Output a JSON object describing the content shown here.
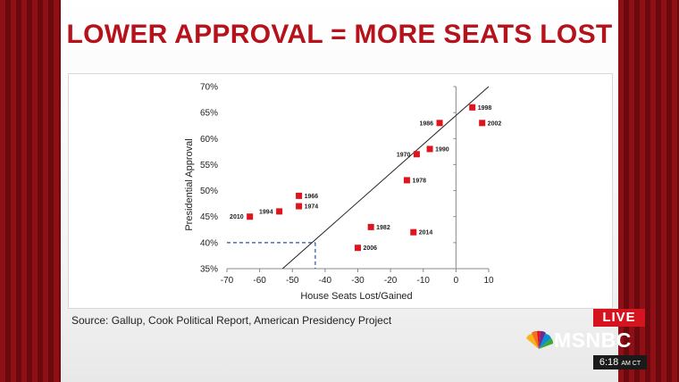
{
  "headline": "LOWER APPROVAL = MORE SEATS LOST",
  "source": "Source: Gallup, Cook Political Report, American Presidency Project",
  "live_label": "LIVE",
  "network": "MSNBC",
  "clock": {
    "time": "6:18",
    "tz": "AM CT"
  },
  "colors": {
    "accent": "#b5121b",
    "marker": "#e0141e",
    "background": "#7a0d12"
  },
  "chart_data": {
    "type": "scatter",
    "title": "",
    "xlabel": "House Seats Lost/Gained",
    "ylabel": "Presidential Approval",
    "xlim": [
      -70,
      10
    ],
    "ylim": [
      35,
      70
    ],
    "xticks": [
      -70,
      -60,
      -50,
      -40,
      -30,
      -20,
      -10,
      0,
      10
    ],
    "yticks": [
      35,
      40,
      45,
      50,
      55,
      60,
      65,
      70
    ],
    "xtick_labels": [
      "-70",
      "-60",
      "-50",
      "-40",
      "-30",
      "-20",
      "-10",
      "0",
      "10"
    ],
    "ytick_labels": [
      "35%",
      "40%",
      "45%",
      "50%",
      "55%",
      "60%",
      "65%",
      "70%"
    ],
    "grid": false,
    "points": [
      {
        "label": "2010",
        "x": -63,
        "y": 45
      },
      {
        "label": "1994",
        "x": -54,
        "y": 46
      },
      {
        "label": "1966",
        "x": -48,
        "y": 49
      },
      {
        "label": "1974",
        "x": -48,
        "y": 47
      },
      {
        "label": "1982",
        "x": -26,
        "y": 43
      },
      {
        "label": "2006",
        "x": -30,
        "y": 39
      },
      {
        "label": "2014",
        "x": -13,
        "y": 42
      },
      {
        "label": "1978",
        "x": -15,
        "y": 52
      },
      {
        "label": "1970",
        "x": -12,
        "y": 57
      },
      {
        "label": "1990",
        "x": -8,
        "y": 58
      },
      {
        "label": "1986",
        "x": -5,
        "y": 63
      },
      {
        "label": "1998",
        "x": 5,
        "y": 66
      },
      {
        "label": "2002",
        "x": 8,
        "y": 63
      }
    ],
    "trendline": [
      {
        "x": -53,
        "y": 35
      },
      {
        "x": 10,
        "y": 70
      }
    ],
    "reference_lines": {
      "x": -43,
      "y": 40
    }
  }
}
